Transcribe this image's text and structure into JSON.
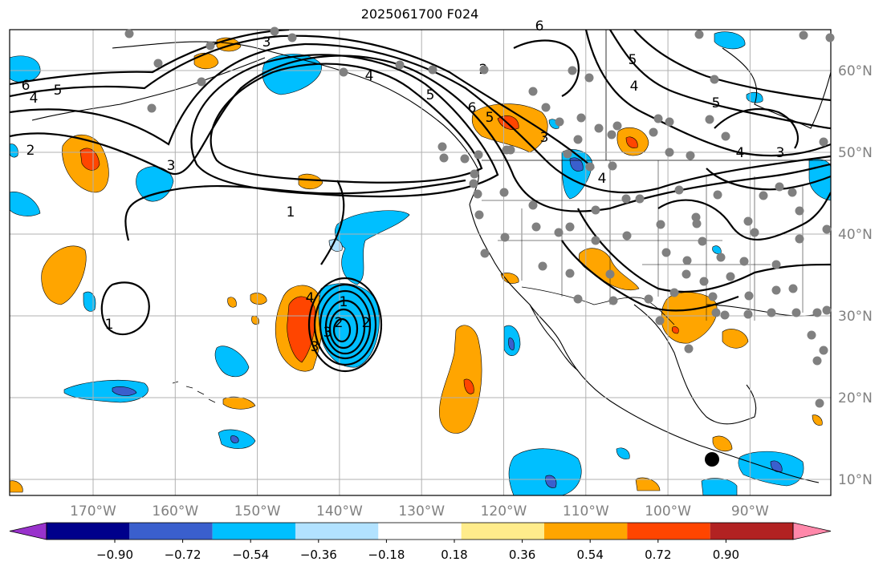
{
  "title": "2025061700 F024",
  "map": {
    "lon_labels": [
      "170°W",
      "160°W",
      "150°W",
      "140°W",
      "130°W",
      "120°W",
      "110°W",
      "100°W",
      "90°W"
    ],
    "lat_labels": [
      "60°N",
      "50°N",
      "40°N",
      "30°N",
      "20°N",
      "10°N"
    ],
    "lon_range": [
      -180,
      -80
    ],
    "lat_range": [
      8,
      66
    ],
    "gridlines": true
  },
  "contour_labels": [
    "3",
    "4",
    "5",
    "6",
    "2",
    "1",
    "1",
    "5",
    "4",
    "3",
    "6",
    "5",
    "4",
    "3",
    "4",
    "5",
    "3",
    "2",
    "4",
    "3",
    "2",
    "1",
    "2",
    "3",
    "4",
    "5",
    "6"
  ],
  "colorbar": {
    "ticks": [
      "−0.90",
      "−0.72",
      "−0.54",
      "−0.36",
      "−0.18",
      "0.18",
      "0.36",
      "0.54",
      "0.72",
      "0.90"
    ],
    "colors": [
      "#9932cc",
      "#00008b",
      "#3a5fcd",
      "#00bfff",
      "#b2e2ff",
      "#ffffff",
      "#ffec8b",
      "#ffa500",
      "#ff4500",
      "#b22222",
      "#ff88aa"
    ],
    "extend": "both"
  },
  "colors": {
    "gridline": "#b0b0b0",
    "contour": "#000000",
    "station_dot": "#808080",
    "tick_label": "#808080"
  }
}
